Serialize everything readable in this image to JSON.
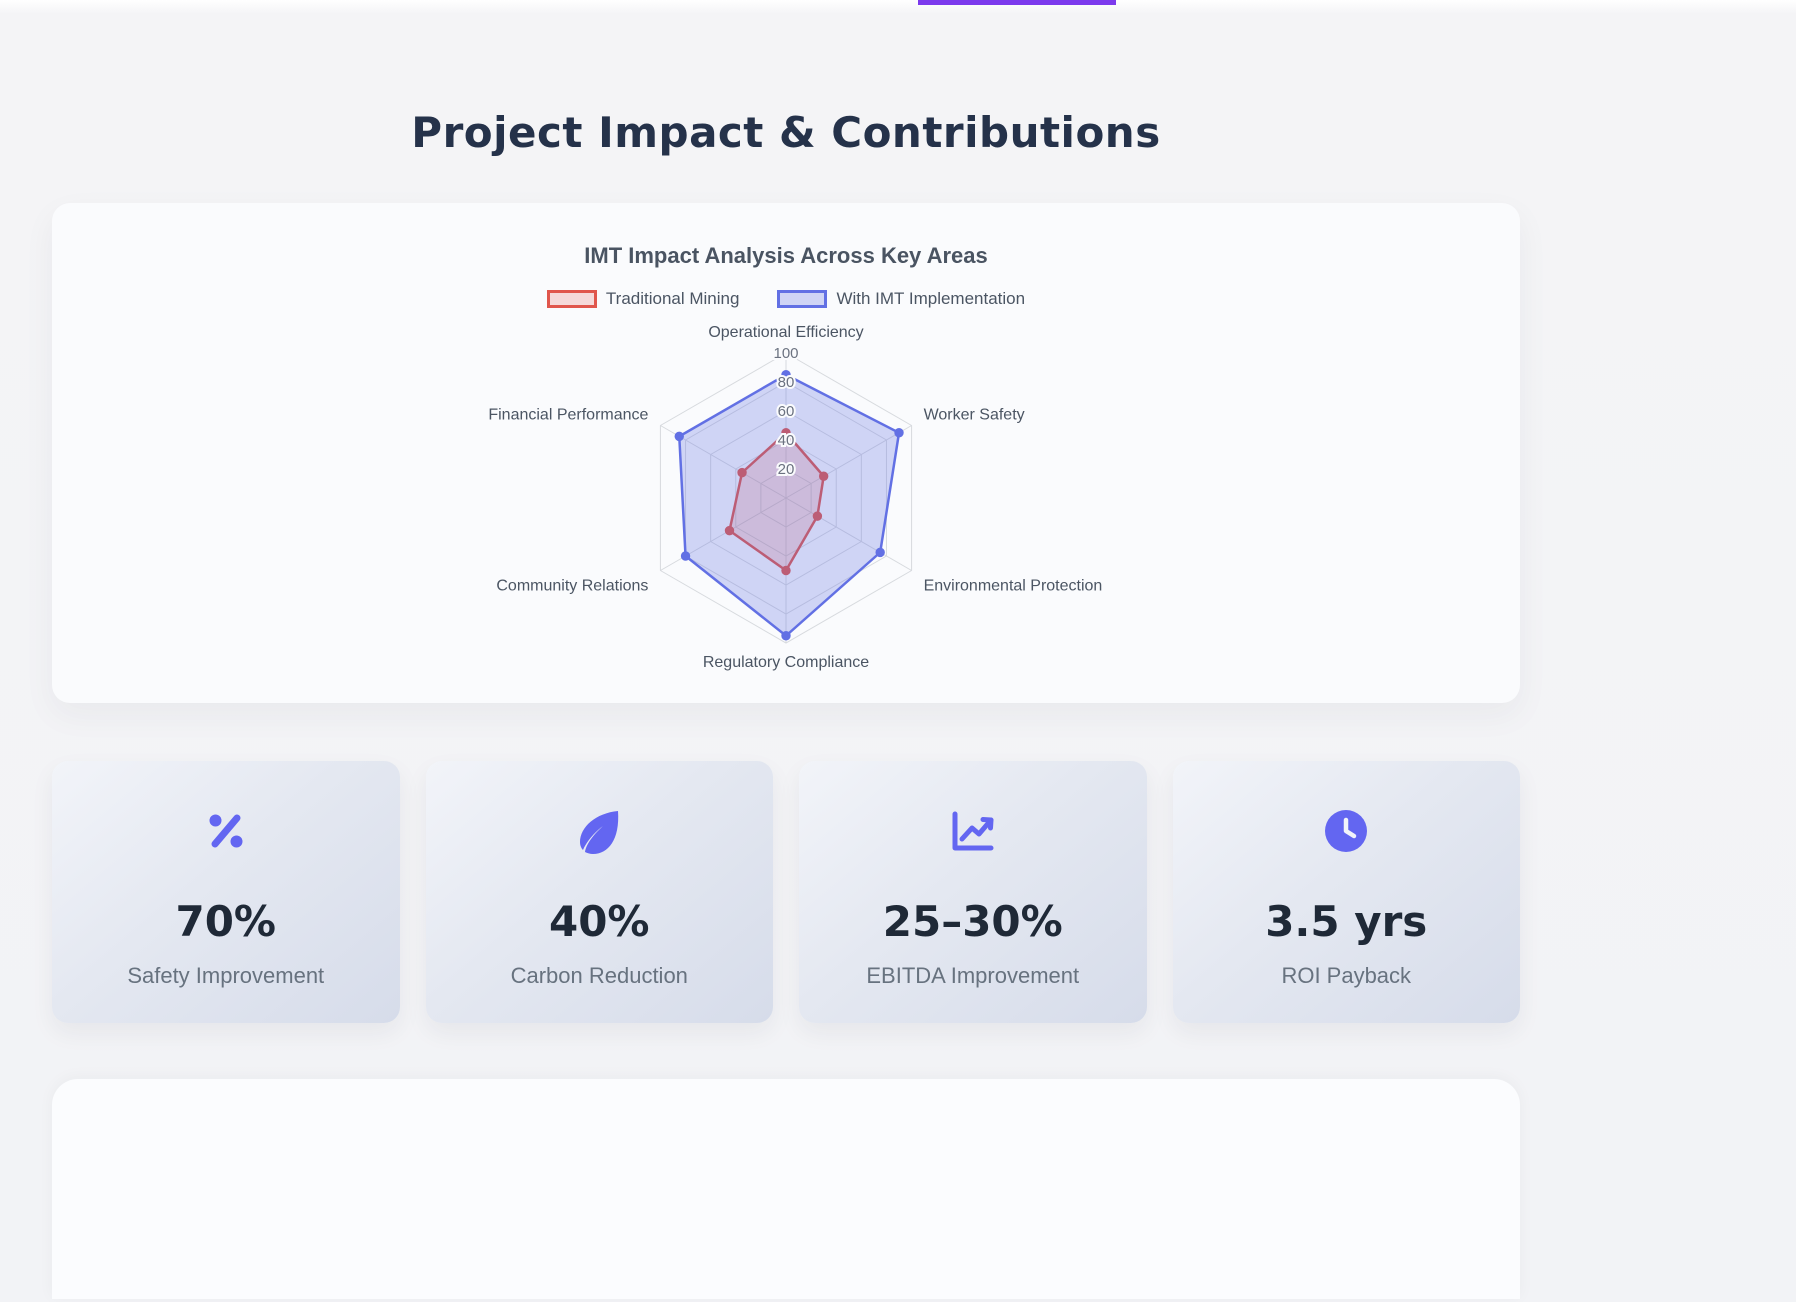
{
  "page": {
    "title": "Project Impact & Contributions",
    "accent_color": "#7c3aed",
    "icon_color": "#6366f1"
  },
  "chart_data": {
    "type": "radar",
    "title": "IMT Impact Analysis Across Key Areas",
    "categories": [
      "Operational Efficiency",
      "Worker Safety",
      "Environmental Protection",
      "Regulatory Compliance",
      "Community Relations",
      "Financial Performance"
    ],
    "series": [
      {
        "name": "Traditional Mining",
        "values": [
          45,
          30,
          25,
          50,
          45,
          35
        ],
        "color": "#e0564c",
        "fill": "rgba(224,86,76,0.20)"
      },
      {
        "name": "With IMT Implementation",
        "values": [
          85,
          90,
          75,
          95,
          80,
          85
        ],
        "color": "#6270e4",
        "fill": "rgba(98,112,228,0.28)"
      }
    ],
    "ticks": [
      20,
      40,
      60,
      80,
      100
    ],
    "max": 100,
    "legend_position": "top",
    "grid": true
  },
  "stats": [
    {
      "icon": "percent-icon",
      "value": "70%",
      "label": "Safety Improvement"
    },
    {
      "icon": "leaf-icon",
      "value": "40%",
      "label": "Carbon Reduction"
    },
    {
      "icon": "chart-line-icon",
      "value": "25–30%",
      "label": "EBITDA Improvement"
    },
    {
      "icon": "clock-icon",
      "value": "3.5 yrs",
      "label": "ROI Payback"
    }
  ]
}
